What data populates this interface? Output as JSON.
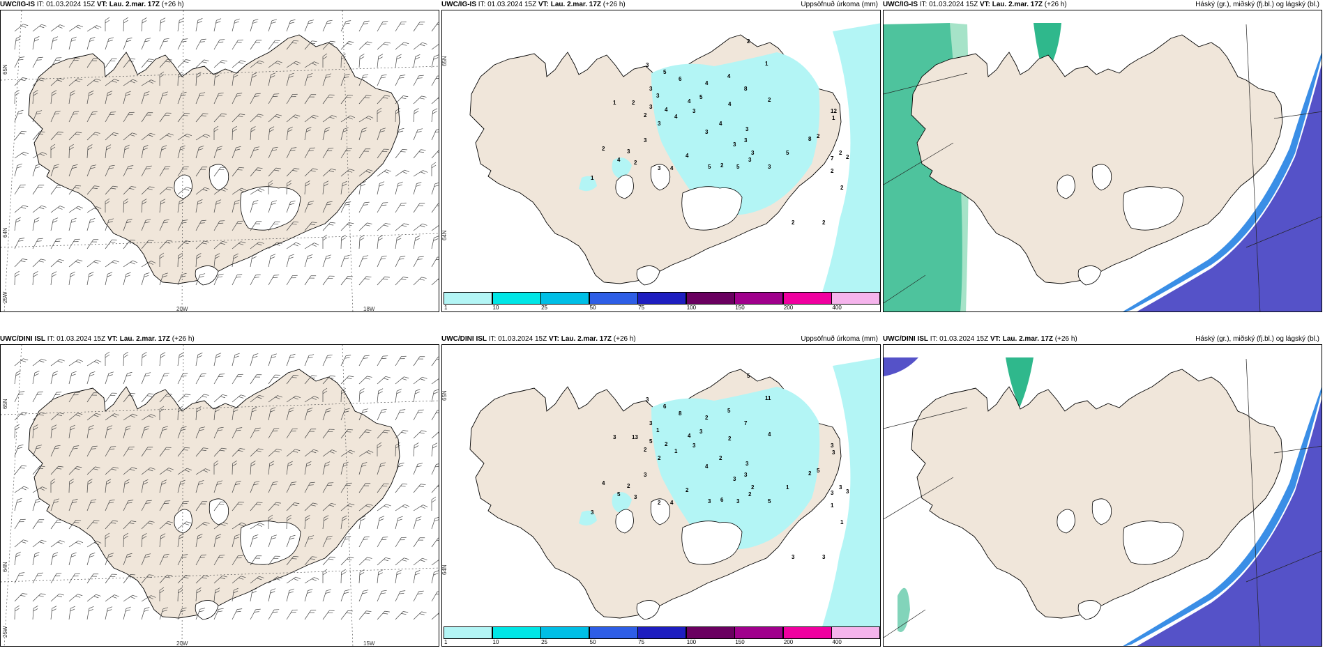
{
  "colors": {
    "land": "#f0e6da",
    "land_cloud": "#eee4da",
    "ice": "#ffffff",
    "precip": "#b3f5f5",
    "high_cloud": "#2fb88c",
    "high_cloud_light": "#a6e3c8",
    "low_cloud": "#5552c8",
    "mid_cloud": "#3a8ee6"
  },
  "rows": [
    {
      "model": "UWC/IG-IS",
      "it_label": "IT:",
      "it_value": "01.03.2024 15Z",
      "vt_label": "VT:",
      "vt_value": "Lau. 2.mar. 17Z",
      "lead": "(+26 h)",
      "wind_axis": {
        "lat_top": "65N",
        "lat_bottom": "64N",
        "lon_left": "20W",
        "lon_right": "18W",
        "corner": "25W"
      },
      "precip_axis": {
        "lat_top": "65N",
        "lat_bottom": "64N"
      },
      "precip_values": [
        "2",
        "1",
        "3",
        "5",
        "6",
        "3",
        "4",
        "4",
        "8",
        "3",
        "5",
        "4",
        "3",
        "2",
        "4",
        "1",
        "2",
        "3",
        "4",
        "2",
        "4",
        "3",
        "4",
        "3",
        "3",
        "3",
        "3",
        "3",
        "8",
        "12",
        "1",
        "2",
        "2",
        "5",
        "3",
        "4",
        "3",
        "2",
        "2",
        "5",
        "5",
        "3",
        "3",
        "2",
        "4",
        "1",
        "2",
        "2",
        "2",
        "2",
        "7",
        "3",
        "4",
        "2"
      ]
    },
    {
      "model": "UWC/DINI ISL",
      "it_label": "IT:",
      "it_value": "01.03.2024 15Z",
      "vt_label": "VT:",
      "vt_value": "Lau. 2.mar. 17Z",
      "lead": "(+26 h)",
      "wind_axis": {
        "lat_top": "65N",
        "lat_bottom": "64N",
        "lon_left": "20W",
        "lon_right": "15W",
        "corner": "25W"
      },
      "precip_axis": {
        "lat_top": "65N",
        "lat_bottom": "64N"
      },
      "precip_values": [
        "5",
        "11",
        "3",
        "6",
        "8",
        "3",
        "5",
        "2",
        "7",
        "1",
        "3",
        "4",
        "5",
        "13",
        "2",
        "3",
        "2",
        "3",
        "2",
        "4",
        "2",
        "2",
        "1",
        "2",
        "3",
        "4",
        "3",
        "3",
        "2",
        "3",
        "3",
        "5",
        "3",
        "1",
        "2",
        "2",
        "2",
        "3",
        "6",
        "3",
        "3",
        "2",
        "5",
        "4",
        "5",
        "3",
        "1",
        "3",
        "3",
        "3",
        "3",
        "3",
        "4",
        "1"
      ]
    }
  ],
  "precip_title": "Uppsöfnuð úrkoma (mm)",
  "cloud_title": "Háský (gr.), miðský (fj.bl.) og lágský (bl.)",
  "colorbar": {
    "ticks": [
      "1",
      "10",
      "25",
      "50",
      "75",
      "100",
      "150",
      "200",
      "400"
    ],
    "colors": [
      "#b3f5f5",
      "#00e6e6",
      "#00bfe6",
      "#2e5ee6",
      "#1e1ec0",
      "#6a0060",
      "#a0008c",
      "#f000a0",
      "#f5b4ec"
    ]
  }
}
